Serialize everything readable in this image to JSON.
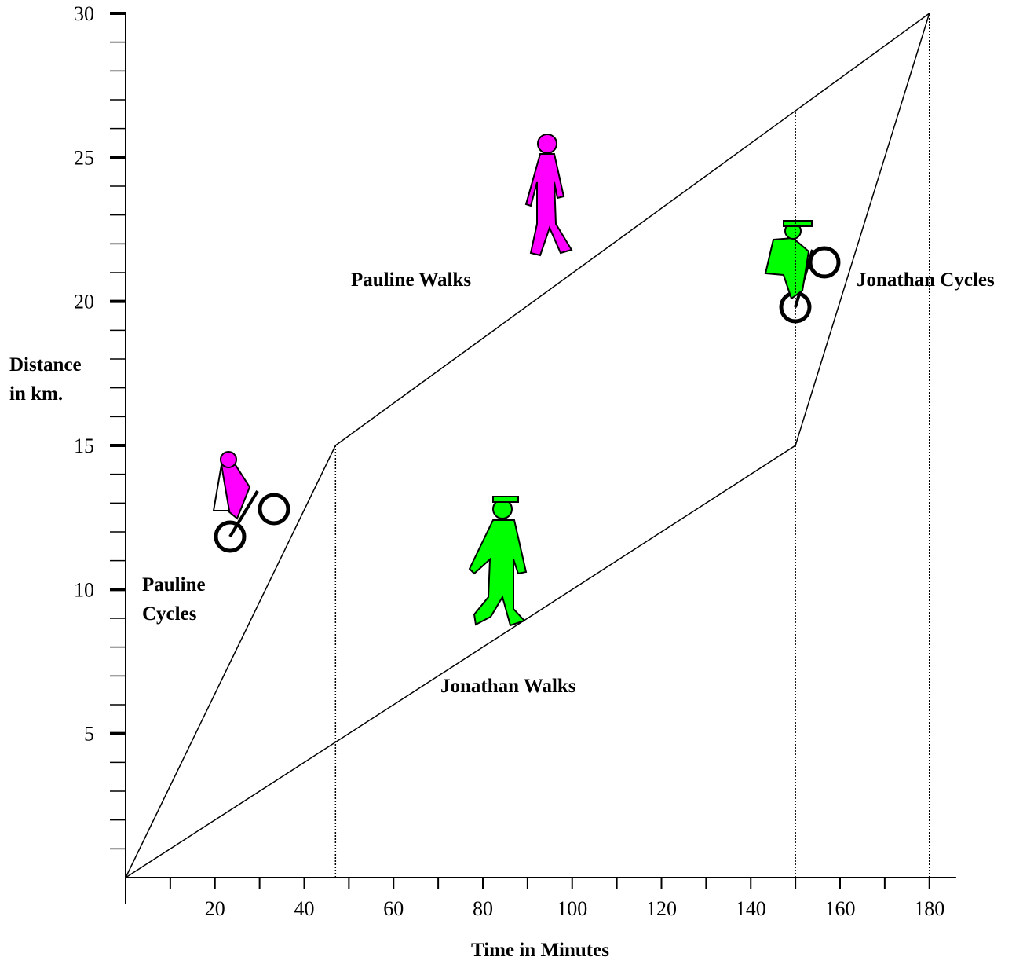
{
  "chart_data": {
    "type": "line",
    "xlabel": "Time in Minutes",
    "ylabel": [
      "Distance",
      "in km."
    ],
    "xlim": [
      0,
      186
    ],
    "ylim": [
      0,
      30
    ],
    "xticks": [
      20,
      40,
      60,
      80,
      100,
      120,
      140,
      160,
      180
    ],
    "xminorticks": [
      10,
      30,
      50,
      70,
      90,
      110,
      130,
      150,
      170
    ],
    "yticks": [
      5,
      10,
      15,
      20,
      25,
      30
    ],
    "yminorticks": [
      1,
      2,
      3,
      4,
      6,
      7,
      8,
      9,
      11,
      12,
      13,
      14,
      16,
      17,
      18,
      19,
      21,
      22,
      23,
      24,
      26,
      27,
      28,
      29
    ],
    "series": [
      {
        "color": "#000000",
        "x": [
          0,
          47,
          180
        ],
        "values": [
          0,
          15,
          30
        ]
      },
      {
        "color": "#000000",
        "x": [
          0,
          150,
          180
        ],
        "values": [
          0,
          15,
          30
        ]
      }
    ],
    "guides": {
      "x": [
        47,
        150,
        180
      ],
      "values": [
        15,
        26.6,
        30
      ]
    },
    "annotations": [
      [
        "Pauline Walks"
      ],
      [
        "Pauline",
        "Cycles"
      ],
      [
        "Jonathan Walks"
      ],
      [
        "Jonathan Cycles"
      ]
    ]
  }
}
